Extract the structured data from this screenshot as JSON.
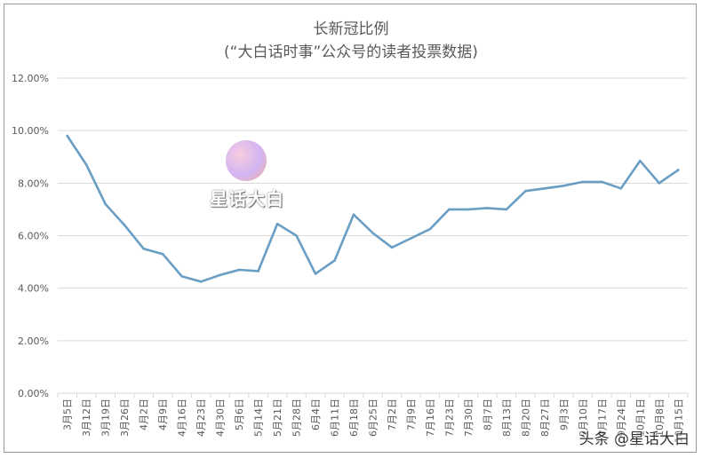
{
  "chart_data": {
    "type": "line",
    "title": "长新冠比例",
    "subtitle": "(“大白话时事”公众号的读者投票数据)",
    "ylim": [
      0,
      12
    ],
    "y_ticks": [
      "0.00%",
      "2.00%",
      "4.00%",
      "6.00%",
      "8.00%",
      "10.00%",
      "12.00%"
    ],
    "y_tick_values": [
      0,
      2,
      4,
      6,
      8,
      10,
      12
    ],
    "categories": [
      "3月5日",
      "3月12日",
      "3月19日",
      "3月26日",
      "4月2日",
      "4月9日",
      "4月16日",
      "4月23日",
      "4月30日",
      "5月6日",
      "5月14日",
      "5月21日",
      "5月28日",
      "6月4日",
      "6月11日",
      "6月18日",
      "6月25日",
      "7月2日",
      "7月9日",
      "7月16日",
      "7月23日",
      "7月30日",
      "8月7日",
      "8月13日",
      "8月20日",
      "8月27日",
      "9月3日",
      "9月10日",
      "9月17日",
      "9月24日",
      "10月1日",
      "10月8日",
      "10月15日"
    ],
    "series": [
      {
        "values": [
          9.8,
          8.7,
          7.2,
          6.4,
          5.5,
          5.3,
          4.45,
          4.25,
          4.5,
          4.7,
          4.65,
          6.45,
          6.0,
          4.55,
          5.05,
          6.8,
          6.1,
          5.55,
          5.9,
          6.25,
          7.0,
          7.0,
          7.05,
          7.0,
          7.7,
          7.8,
          7.9,
          8.05,
          8.05,
          7.8,
          8.85,
          8.0,
          8.5
        ]
      }
    ],
    "grid": true,
    "line_color": "#6a9ec4"
  },
  "logo": {
    "text": "星话大白"
  },
  "watermark": {
    "text": "头条 @星话大白"
  }
}
